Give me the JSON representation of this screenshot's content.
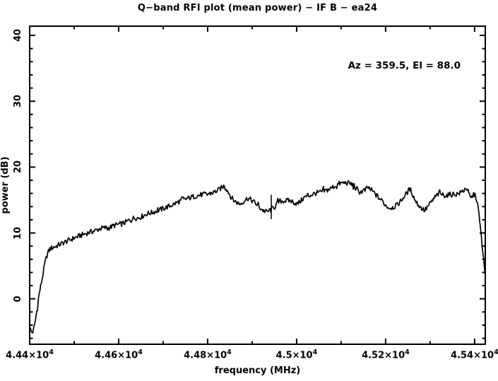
{
  "figure": {
    "title": "Q−band RFI plot (mean power) − IF B − ea24",
    "annotation": "Az = 359.5, El = 88.0",
    "xlabel": "frequency (MHz)",
    "ylabel": "power (dB)"
  },
  "chart_data": {
    "type": "line",
    "title": "Q−band RFI plot (mean power) − IF B − ea24",
    "annotation": "Az = 359.5, El = 88.0",
    "xlabel": "frequency (MHz)",
    "ylabel": "power (dB)",
    "xlim": [
      44400,
      45424
    ],
    "ylim": [
      -6.9,
      41.4
    ],
    "grid": false,
    "legend": "none",
    "line_color": "#000000",
    "background": "#ffffff",
    "x_ticks_major": [
      {
        "v": 44400,
        "base": "4.44×10",
        "exp": "4"
      },
      {
        "v": 44600,
        "base": "4.46×10",
        "exp": "4"
      },
      {
        "v": 44800,
        "base": "4.48×10",
        "exp": "4"
      },
      {
        "v": 45000,
        "base": "4.5×10",
        "exp": "4"
      },
      {
        "v": 45200,
        "base": "4.52×10",
        "exp": "4"
      },
      {
        "v": 45400,
        "base": "4.54×10",
        "exp": "4"
      }
    ],
    "x_ticks_minor": [
      44500,
      44700,
      44900,
      45100,
      45300
    ],
    "y_ticks_major": [
      {
        "v": 0,
        "label": "0"
      },
      {
        "v": 10,
        "label": "10"
      },
      {
        "v": 20,
        "label": "20"
      },
      {
        "v": 30,
        "label": "30"
      },
      {
        "v": 40,
        "label": "40"
      }
    ],
    "y_ticks_minor": [
      -6,
      -4,
      -2,
      2,
      4,
      6,
      8,
      12,
      14,
      16,
      18,
      22,
      24,
      26,
      28,
      32,
      34,
      36,
      38
    ],
    "noise_db": 0.4,
    "spike": {
      "x": 44943,
      "db_top": 15.8,
      "db_bottom": 12.1
    },
    "series": [
      {
        "name": "mean power",
        "points": [
          [
            44400,
            -4.2
          ],
          [
            44403,
            -4.9
          ],
          [
            44406,
            -5.2
          ],
          [
            44410,
            -4.4
          ],
          [
            44414,
            -2.8
          ],
          [
            44421,
            0.6
          ],
          [
            44429,
            3.4
          ],
          [
            44434,
            5.3
          ],
          [
            44440,
            6.9
          ],
          [
            44446,
            7.6
          ],
          [
            44452,
            7.8
          ],
          [
            44460,
            8.0
          ],
          [
            44472,
            8.4
          ],
          [
            44492,
            9.0
          ],
          [
            44510,
            9.5
          ],
          [
            44530,
            10.0
          ],
          [
            44545,
            10.3
          ],
          [
            44560,
            10.7
          ],
          [
            44572,
            10.8
          ],
          [
            44580,
            10.8
          ],
          [
            44588,
            11.1
          ],
          [
            44600,
            11.3
          ],
          [
            44608,
            11.4
          ],
          [
            44618,
            11.7
          ],
          [
            44628,
            12.1
          ],
          [
            44636,
            12.3
          ],
          [
            44645,
            12.3
          ],
          [
            44655,
            12.6
          ],
          [
            44663,
            12.9
          ],
          [
            44675,
            13.1
          ],
          [
            44688,
            13.4
          ],
          [
            44700,
            13.7
          ],
          [
            44715,
            14.1
          ],
          [
            44728,
            14.5
          ],
          [
            44740,
            14.9
          ],
          [
            44758,
            15.3
          ],
          [
            44772,
            15.6
          ],
          [
            44786,
            15.8
          ],
          [
            44800,
            15.9
          ],
          [
            44812,
            16.1
          ],
          [
            44824,
            16.5
          ],
          [
            44832,
            16.9
          ],
          [
            44838,
            17.2
          ],
          [
            44845,
            16.4
          ],
          [
            44852,
            15.5
          ],
          [
            44858,
            15.0
          ],
          [
            44866,
            14.6
          ],
          [
            44874,
            14.4
          ],
          [
            44882,
            14.9
          ],
          [
            44890,
            15.3
          ],
          [
            44898,
            15.0
          ],
          [
            44906,
            14.6
          ],
          [
            44916,
            13.9
          ],
          [
            44925,
            13.4
          ],
          [
            44933,
            13.2
          ],
          [
            44943,
            13.5
          ],
          [
            44952,
            14.2
          ],
          [
            44962,
            14.8
          ],
          [
            44974,
            14.9
          ],
          [
            44986,
            14.9
          ],
          [
            44995,
            14.6
          ],
          [
            45002,
            14.4
          ],
          [
            45010,
            14.9
          ],
          [
            45017,
            15.4
          ],
          [
            45030,
            15.7
          ],
          [
            45041,
            16.0
          ],
          [
            45055,
            16.2
          ],
          [
            45065,
            16.4
          ],
          [
            45075,
            16.7
          ],
          [
            45085,
            17.1
          ],
          [
            45097,
            17.5
          ],
          [
            45105,
            17.6
          ],
          [
            45113,
            17.6
          ],
          [
            45121,
            17.5
          ],
          [
            45129,
            17.2
          ],
          [
            45134,
            16.6
          ],
          [
            45140,
            16.2
          ],
          [
            45148,
            16.3
          ],
          [
            45155,
            16.6
          ],
          [
            45161,
            16.9
          ],
          [
            45168,
            16.5
          ],
          [
            45177,
            15.9
          ],
          [
            45185,
            15.3
          ],
          [
            45193,
            14.8
          ],
          [
            45200,
            14.2
          ],
          [
            45208,
            13.8
          ],
          [
            45216,
            13.9
          ],
          [
            45224,
            14.1
          ],
          [
            45232,
            14.7
          ],
          [
            45240,
            15.4
          ],
          [
            45248,
            16.1
          ],
          [
            45255,
            16.7
          ],
          [
            45261,
            15.8
          ],
          [
            45267,
            14.9
          ],
          [
            45272,
            14.4
          ],
          [
            45280,
            13.8
          ],
          [
            45288,
            13.4
          ],
          [
            45296,
            14.1
          ],
          [
            45304,
            14.8
          ],
          [
            45312,
            15.5
          ],
          [
            45320,
            16.0
          ],
          [
            45328,
            15.8
          ],
          [
            45336,
            15.7
          ],
          [
            45344,
            15.8
          ],
          [
            45352,
            15.9
          ],
          [
            45360,
            15.9
          ],
          [
            45368,
            16.1
          ],
          [
            45376,
            16.5
          ],
          [
            45382,
            16.9
          ],
          [
            45388,
            15.7
          ],
          [
            45392,
            15.2
          ],
          [
            45398,
            15.9
          ],
          [
            45403,
            15.5
          ],
          [
            45407,
            14.3
          ],
          [
            45411,
            12.0
          ],
          [
            45415,
            9.5
          ],
          [
            45418,
            7.3
          ],
          [
            45421,
            5.3
          ],
          [
            45423,
            3.8
          ],
          [
            45424,
            3.6
          ]
        ]
      }
    ]
  }
}
